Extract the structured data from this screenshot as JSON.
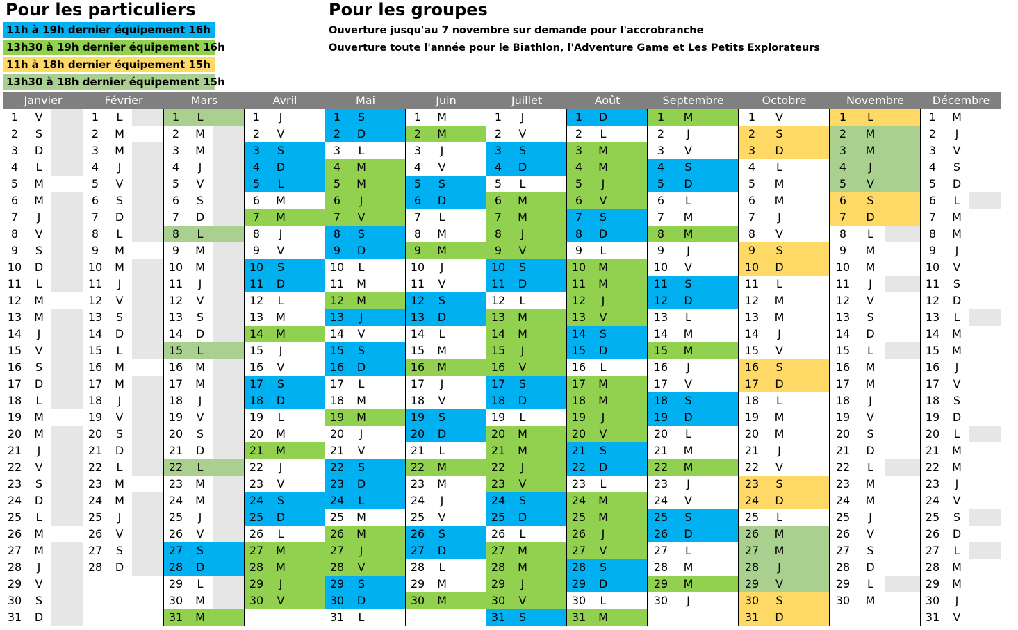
{
  "particuliers": {
    "title": "Pour les particuliers",
    "legend": [
      {
        "label": "11h à 19h dernier équipement 16h",
        "color": "#00b0f0"
      },
      {
        "label": "13h30 à 19h dernier équipement 16h",
        "color": "#92d050"
      },
      {
        "label": "11h à 18h dernier équipement 15h",
        "color": "#ffd966"
      },
      {
        "label": "13h30 à 18h dernier équipement 15h",
        "color": "#a9d08e"
      }
    ]
  },
  "groupes": {
    "title": "Pour les groupes",
    "line1": "Ouverture jusqu'au 7 novembre sur demande pour l'accrobranche",
    "line2": "Ouverture toute l'année pour le Biathlon, l'Adventure Game et Les Petits Explorateurs"
  },
  "colors": {
    "B": "#00b0f0",
    "G": "#92d050",
    "Y": "#ffd966",
    "L": "#a9d08e",
    "D": "#e7e6e6",
    "header": "#808080"
  },
  "months": [
    {
      "name": "Janvier",
      "days": [
        "V",
        "S",
        "D",
        "L",
        "M",
        "M",
        "J",
        "V",
        "S",
        "D",
        "L",
        "M",
        "M",
        "J",
        "V",
        "S",
        "D",
        "L",
        "M",
        "M",
        "J",
        "V",
        "S",
        "D",
        "L",
        "M",
        "M",
        "J",
        "V",
        "S",
        "D"
      ],
      "colors": "DDDDMDDDDDDMDDDDDDMDDDDDDMDDDDD"
    },
    {
      "name": "Février",
      "days": [
        "L",
        "M",
        "M",
        "J",
        "V",
        "S",
        "D",
        "L",
        "M",
        "M",
        "J",
        "V",
        "S",
        "D",
        "L",
        "M",
        "M",
        "J",
        "V",
        "S",
        "D",
        "L",
        "M",
        "M",
        "J",
        "V",
        "S",
        "D"
      ],
      "colors": "DMDDDDDDMDDDDDDMDDDDDDMDDDDD"
    },
    {
      "name": "Mars",
      "days": [
        "L",
        "M",
        "M",
        "J",
        "V",
        "S",
        "D",
        "L",
        "M",
        "M",
        "J",
        "V",
        "S",
        "D",
        "L",
        "M",
        "M",
        "J",
        "V",
        "S",
        "D",
        "L",
        "M",
        "M",
        "J",
        "V",
        "S",
        "D",
        "L",
        "M",
        "M"
      ],
      "colors": "LDDDDDDLDDDDDDLDDDDDDLDDDDBBDDG"
    },
    {
      "name": "Avril",
      "days": [
        "J",
        "V",
        "S",
        "D",
        "L",
        "M",
        "M",
        "J",
        "V",
        "S",
        "D",
        "L",
        "M",
        "M",
        "J",
        "V",
        "S",
        "D",
        "L",
        "M",
        "M",
        "J",
        "V",
        "S",
        "D",
        "L",
        "M",
        "M",
        "J",
        "V"
      ],
      "colors": "WWBBBWGWWBBWWGWWBBWWGWWBBWGGGG"
    },
    {
      "name": "Mai",
      "days": [
        "S",
        "D",
        "L",
        "M",
        "M",
        "J",
        "V",
        "S",
        "D",
        "L",
        "M",
        "M",
        "J",
        "V",
        "S",
        "D",
        "L",
        "M",
        "M",
        "J",
        "V",
        "S",
        "D",
        "L",
        "M",
        "M",
        "J",
        "V",
        "S",
        "D",
        "L"
      ],
      "colors": "BBWGGGGBBWWGBWBBWWGWWBBBWGGGBBW"
    },
    {
      "name": "Juin",
      "days": [
        "M",
        "M",
        "J",
        "V",
        "S",
        "D",
        "L",
        "M",
        "M",
        "J",
        "V",
        "S",
        "D",
        "L",
        "M",
        "M",
        "J",
        "V",
        "S",
        "D",
        "L",
        "M",
        "M",
        "J",
        "V",
        "S",
        "D",
        "L",
        "M",
        "M"
      ],
      "colors": "WGWWBBWWGWWBBWWGWWBBWGWWWBBWWG"
    },
    {
      "name": "Juillet",
      "days": [
        "J",
        "V",
        "S",
        "D",
        "L",
        "M",
        "M",
        "J",
        "V",
        "S",
        "D",
        "L",
        "M",
        "M",
        "J",
        "V",
        "S",
        "D",
        "L",
        "M",
        "M",
        "J",
        "V",
        "S",
        "D",
        "L",
        "M",
        "M",
        "J",
        "V",
        "S"
      ],
      "colors": "WWBBWGGGGBBWGGGGBBWGGGGBBWGGGGB"
    },
    {
      "name": "Août",
      "days": [
        "D",
        "L",
        "M",
        "M",
        "J",
        "V",
        "S",
        "D",
        "L",
        "M",
        "M",
        "J",
        "V",
        "S",
        "D",
        "L",
        "M",
        "M",
        "J",
        "V",
        "S",
        "D",
        "L",
        "M",
        "M",
        "J",
        "V",
        "S",
        "D",
        "L",
        "M"
      ],
      "colors": "BWGGGGBBWGGGGBBWGGGGBBWGGGGBBWG"
    },
    {
      "name": "Septembre",
      "days": [
        "M",
        "J",
        "V",
        "S",
        "D",
        "L",
        "M",
        "M",
        "J",
        "V",
        "S",
        "D",
        "L",
        "M",
        "M",
        "J",
        "V",
        "S",
        "D",
        "L",
        "M",
        "M",
        "J",
        "V",
        "S",
        "D",
        "L",
        "M",
        "M",
        "J"
      ],
      "colors": "GWWBBWWGWWBBWWGWWBBWWGWWBBWWGW"
    },
    {
      "name": "Octobre",
      "days": [
        "V",
        "S",
        "D",
        "L",
        "M",
        "M",
        "J",
        "V",
        "S",
        "D",
        "L",
        "M",
        "M",
        "J",
        "V",
        "S",
        "D",
        "L",
        "M",
        "M",
        "J",
        "V",
        "S",
        "D",
        "L",
        "M",
        "M",
        "J",
        "V",
        "S",
        "D"
      ],
      "colors": "WYYWWWWWYYWWWWWYYWWWWWYYWLLLLYY"
    },
    {
      "name": "Novembre",
      "days": [
        "L",
        "M",
        "M",
        "J",
        "V",
        "S",
        "D",
        "L",
        "M",
        "M",
        "J",
        "V",
        "S",
        "D",
        "L",
        "M",
        "M",
        "J",
        "V",
        "S",
        "D",
        "L",
        "M",
        "M",
        "J",
        "V",
        "S",
        "D",
        "L",
        "M"
      ],
      "colors": "YLLLLYYDWWDWWWDWWWWWWDWWWWWWDW"
    },
    {
      "name": "Décembre",
      "days": [
        "M",
        "J",
        "V",
        "S",
        "D",
        "L",
        "M",
        "M",
        "J",
        "V",
        "S",
        "D",
        "L",
        "M",
        "M",
        "J",
        "V",
        "S",
        "D",
        "L",
        "M",
        "M",
        "J",
        "V",
        "S",
        "D",
        "L",
        "M",
        "M",
        "J",
        "V"
      ],
      "colors": "WWWWWDWWWWWWDWWWWWWDWWWWDWDWWWW"
    }
  ]
}
